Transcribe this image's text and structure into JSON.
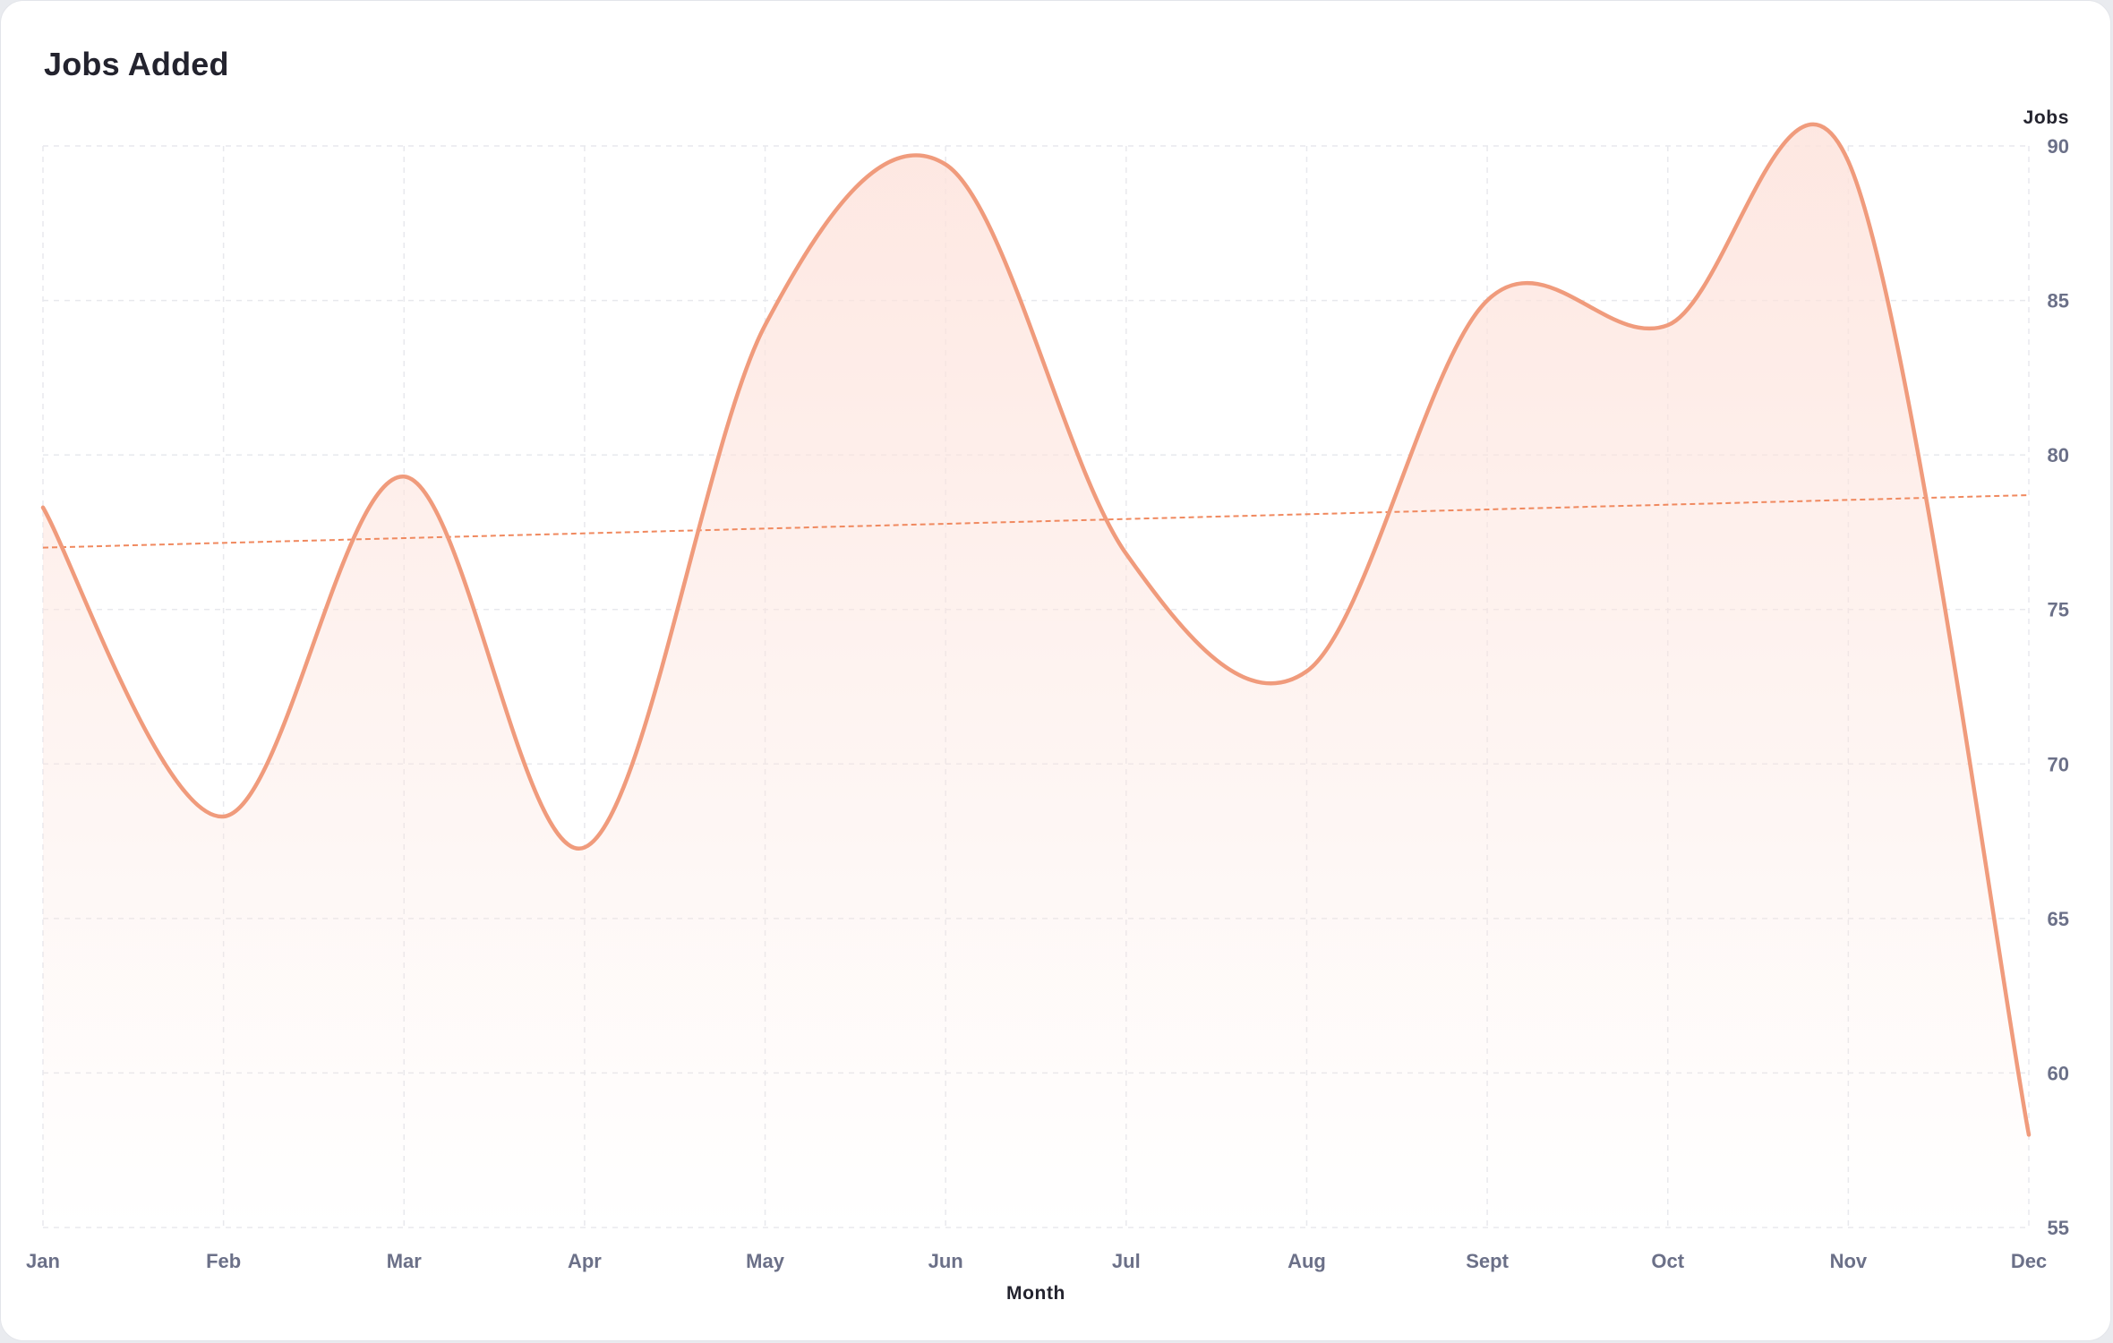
{
  "card": {
    "title": "Jobs Added"
  },
  "chart_data": {
    "type": "area",
    "title": "Jobs Added",
    "xlabel": "Month",
    "ylabel": "Jobs",
    "categories": [
      "Jan",
      "Feb",
      "Mar",
      "Apr",
      "May",
      "Jun",
      "Jul",
      "Aug",
      "Sept",
      "Oct",
      "Nov",
      "Dec"
    ],
    "series": [
      {
        "values": [
          78.3,
          68.3,
          79.3,
          67.3,
          84.2,
          89.4,
          76.8,
          73.0,
          85.0,
          84.2,
          89.5,
          58.0
        ]
      }
    ],
    "trendline": {
      "start": 77.0,
      "end": 78.7
    },
    "ylim": [
      55,
      90
    ],
    "yticks": [
      55,
      60,
      65,
      70,
      75,
      80,
      85,
      90
    ],
    "y_axis_position": "right",
    "grid": true,
    "legend": false,
    "colors": {
      "line": "#f09b7c",
      "trend": "#f0895f",
      "area_top": "#fde3dc",
      "grid": "#e8e9ed"
    }
  }
}
